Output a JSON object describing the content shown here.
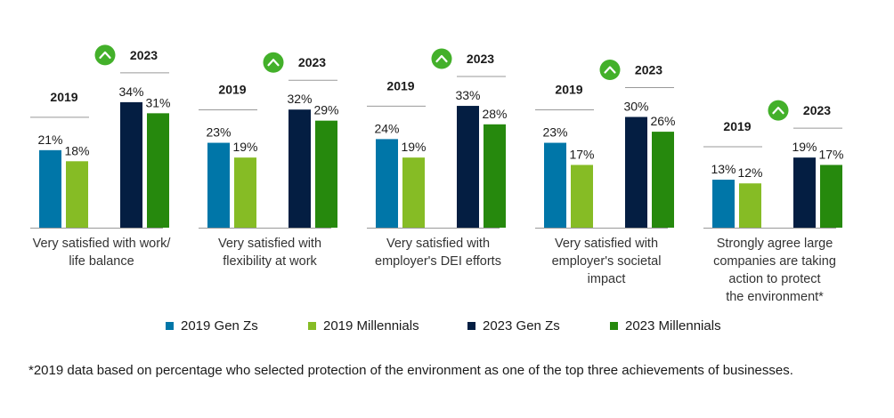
{
  "chart_data": {
    "type": "bar",
    "colors": {
      "gen_z_2019": "#0076a8",
      "millennials_2019": "#86bc25",
      "gen_z_2023": "#041e42",
      "millennials_2023": "#26890d",
      "up_badge": "#43b02a",
      "axis": "#999999"
    },
    "series": [
      {
        "name": "2019 Gen Zs",
        "values": [
          21,
          23,
          24,
          23,
          13
        ]
      },
      {
        "name": "2019 Millennials",
        "values": [
          18,
          19,
          19,
          17,
          12
        ]
      },
      {
        "name": "2023 Gen Zs",
        "values": [
          34,
          32,
          33,
          30,
          19
        ]
      },
      {
        "name": "2023 Millennials",
        "values": [
          31,
          29,
          28,
          26,
          17
        ]
      }
    ],
    "value_labels": [
      [
        "21%",
        "18%",
        "34%",
        "31%"
      ],
      [
        "23%",
        "19%",
        "32%",
        "29%"
      ],
      [
        "24%",
        "19%",
        "33%",
        "28%"
      ],
      [
        "23%",
        "17%",
        "30%",
        "26%"
      ],
      [
        "13%",
        "12%",
        "19%",
        "17%"
      ]
    ],
    "categories": [
      [
        "Very satisfied with work/",
        "life balance"
      ],
      [
        "Very satisfied with",
        "flexibility at work"
      ],
      [
        "Very satisfied with",
        "employer's DEI efforts"
      ],
      [
        "Very satisfied with",
        "employer's societal",
        "impact"
      ],
      [
        "Strongly agree large",
        "companies are taking",
        "action to protect",
        "the environment*"
      ]
    ],
    "group_year_labels": {
      "left": "2019",
      "right": "2023"
    },
    "increase_icon": "up-chevron-badge",
    "legend": [
      "2019 Gen Zs",
      "2019 Millennials",
      "2023 Gen Zs",
      "2023 Millennials"
    ],
    "footnote": "*2019 data based on percentage who selected protection of the environment as one of the top three achievements of businesses."
  }
}
